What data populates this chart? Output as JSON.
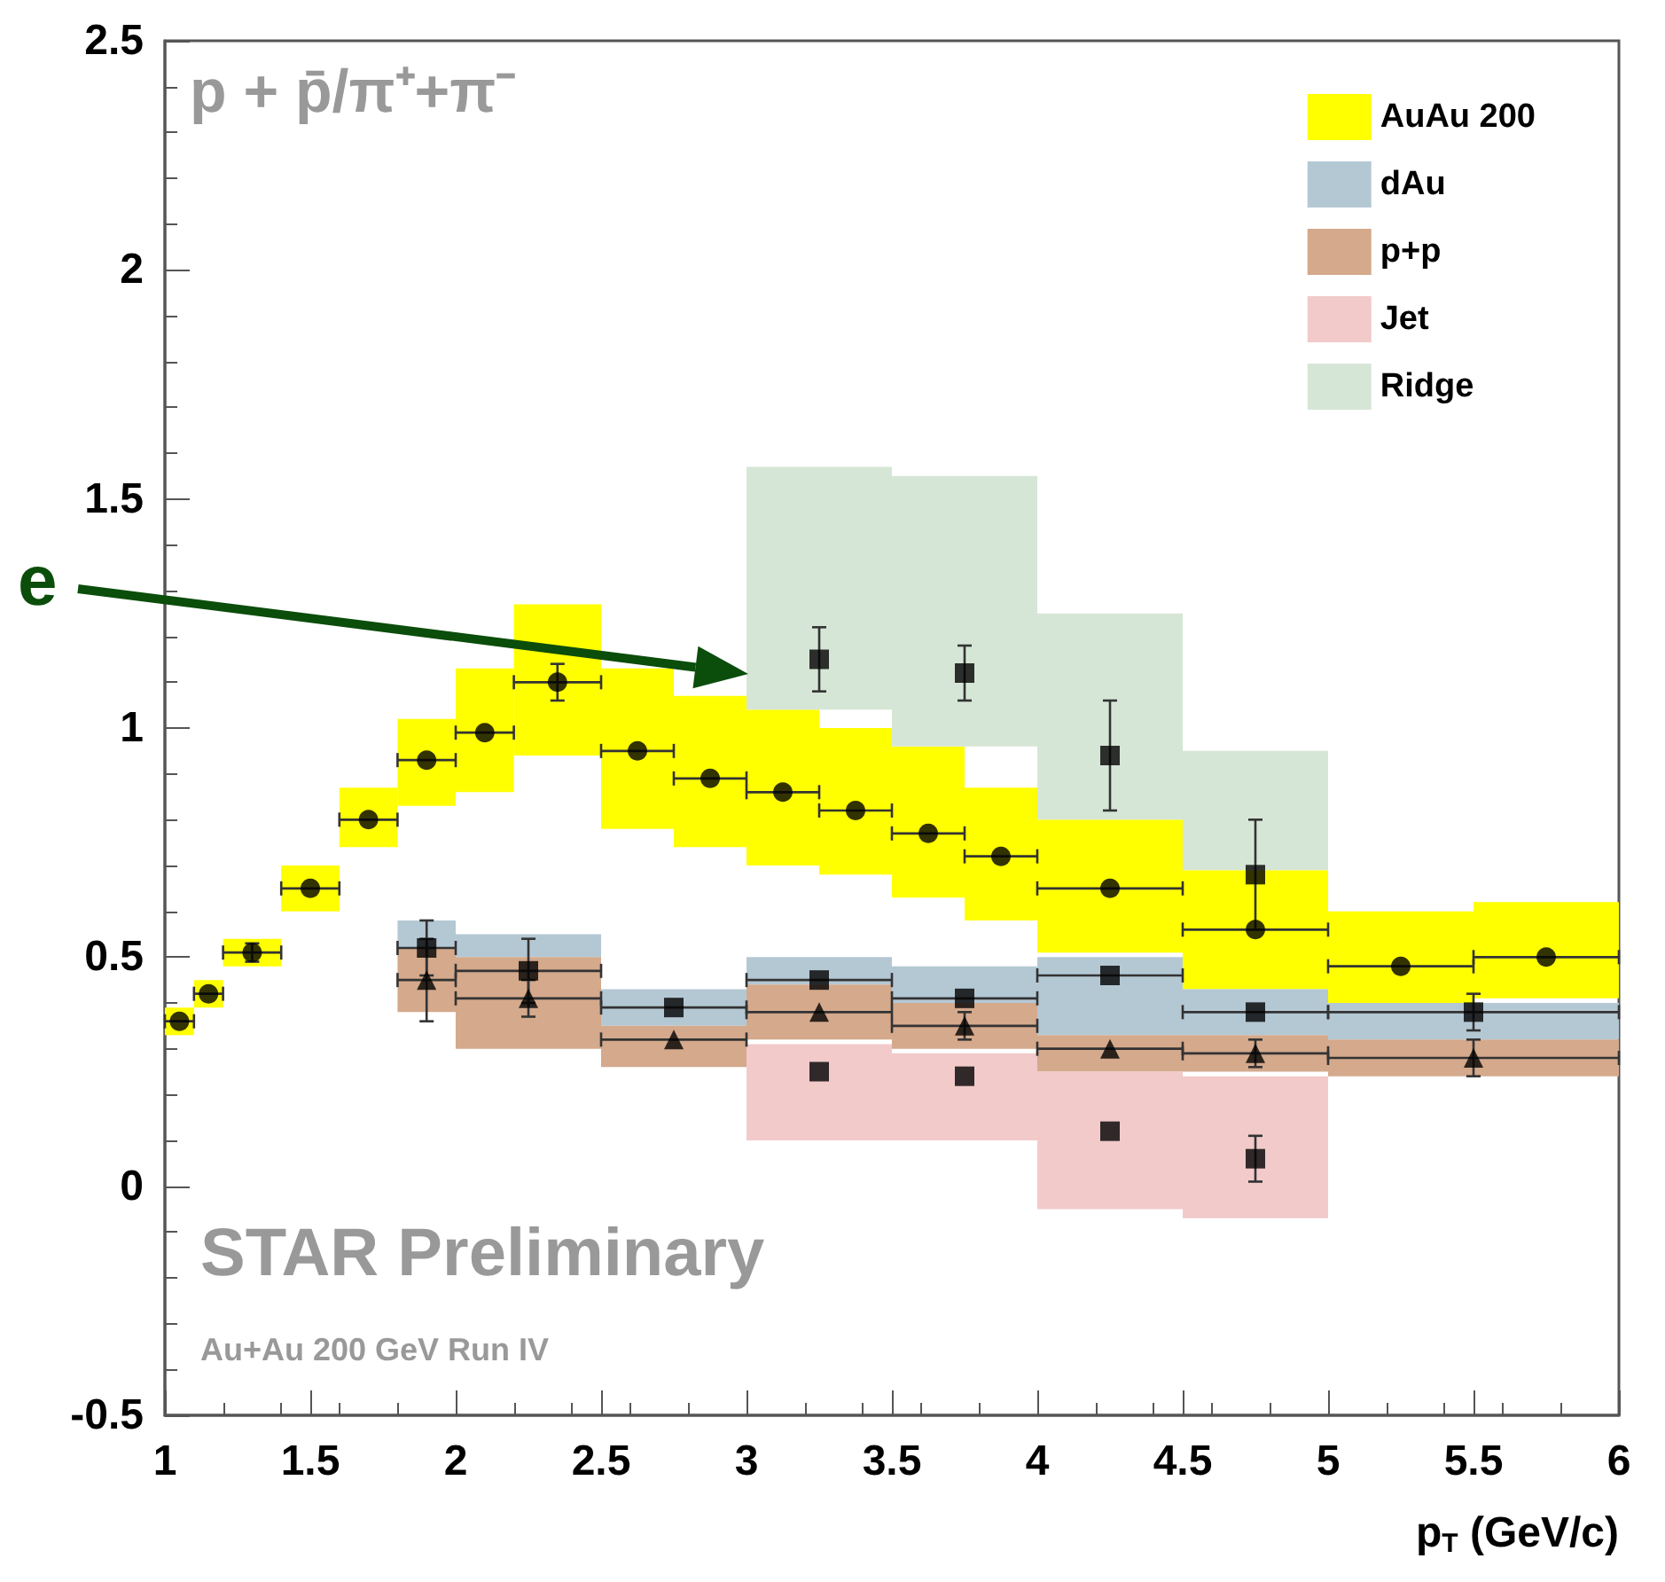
{
  "chart_data": {
    "type": "scatter",
    "title": "p + p̄/π⁺+π⁻",
    "xlabel": "p$_{T}$ (GeV/c)",
    "xlim": [
      1,
      6
    ],
    "xticks": [
      1,
      1.5,
      2,
      2.5,
      3,
      3.5,
      4,
      4.5,
      5,
      5.5,
      6
    ],
    "ylim": [
      -0.5,
      2.5
    ],
    "yticks": [
      -0.5,
      0,
      0.5,
      1,
      1.5,
      2,
      2.5
    ],
    "grid": false,
    "legend": "top right",
    "series": [
      {
        "name": "AuAu 200",
        "type": "bar",
        "color": "#ffff00",
        "x": [
          1.05,
          1.15,
          1.3,
          1.5,
          1.7,
          1.9,
          2.1,
          2.35,
          2.625,
          2.875,
          3.125,
          3.375,
          3.625,
          3.875,
          4.25,
          4.75,
          5.25,
          5.75
        ],
        "base": [
          0.33,
          0.39,
          0.48,
          0.6,
          0.74,
          0.83,
          0.86,
          0.94,
          0.78,
          0.74,
          0.7,
          0.68,
          0.63,
          0.58,
          0.51,
          0.43,
          0.4,
          0.41
        ],
        "values": [
          0.06,
          0.06,
          0.06,
          0.1,
          0.13,
          0.19,
          0.27,
          0.33,
          0.35,
          0.33,
          0.34,
          0.32,
          0.33,
          0.29,
          0.29,
          0.26,
          0.2,
          0.21
        ]
      },
      {
        "color": "#000000",
        "marker": "circle",
        "x": [
          1.05,
          1.15,
          1.3,
          1.5,
          1.7,
          1.9,
          2.1,
          2.35,
          2.625,
          2.875,
          3.125,
          3.375,
          3.625,
          3.875,
          4.25,
          4.75,
          5.25,
          5.75
        ],
        "values": [
          0.36,
          0.42,
          0.51,
          0.65,
          0.8,
          0.93,
          0.99,
          1.1,
          0.95,
          0.89,
          0.86,
          0.82,
          0.77,
          0.72,
          0.65,
          0.56,
          0.48,
          0.5
        ],
        "xerrors": [
          0.05,
          0.05,
          0.1,
          0.1,
          0.1,
          0.1,
          0.1,
          0.15,
          0.125,
          0.125,
          0.125,
          0.125,
          0.125,
          0.125,
          0.25,
          0.25,
          0.25,
          0.25
        ],
        "errors": [
          null,
          null,
          0.02,
          null,
          null,
          null,
          null,
          0.04,
          null,
          null,
          null,
          null,
          null,
          null,
          null,
          null,
          null,
          null
        ]
      },
      {
        "name": "dAu",
        "type": "bar",
        "color": "#b4c8d4",
        "x": [
          1.9,
          2.25,
          2.75,
          3.25,
          3.75,
          4.25,
          4.75,
          5.5
        ],
        "base": [
          0.52,
          0.5,
          0.35,
          0.44,
          0.4,
          0.33,
          0.33,
          0.32
        ],
        "values": [
          0.06,
          0.05,
          0.08,
          0.06,
          0.08,
          0.17,
          0.1,
          0.08
        ]
      },
      {
        "color": "#000000",
        "marker": "square",
        "x": [
          1.9,
          2.25,
          2.75,
          3.25,
          3.75,
          4.25,
          4.75,
          5.5
        ],
        "values": [
          0.52,
          0.47,
          0.39,
          0.45,
          0.41,
          0.46,
          0.38,
          0.38
        ],
        "xerrors": [
          0.1,
          0.25,
          0.25,
          0.25,
          0.25,
          0.25,
          0.25,
          0.5
        ],
        "errors": [
          0.06,
          0.07,
          null,
          null,
          null,
          null,
          null,
          0.04
        ]
      },
      {
        "name": "p+p",
        "type": "bar",
        "color": "#d4a98c",
        "x": [
          1.9,
          2.25,
          2.75,
          3.25,
          3.75,
          4.25,
          4.75,
          5.5
        ],
        "base": [
          0.38,
          0.3,
          0.26,
          0.32,
          0.3,
          0.25,
          0.25,
          0.24
        ],
        "values": [
          0.14,
          0.2,
          0.09,
          0.12,
          0.1,
          0.08,
          0.08,
          0.08
        ]
      },
      {
        "color": "#000000",
        "marker": "triangle",
        "x": [
          1.9,
          2.25,
          2.75,
          3.25,
          3.75,
          4.25,
          4.75,
          5.5
        ],
        "values": [
          0.45,
          0.41,
          0.32,
          0.38,
          0.35,
          0.3,
          0.29,
          0.28
        ],
        "xerrors": [
          0.1,
          0.25,
          0.25,
          0.25,
          0.25,
          0.25,
          0.25,
          0.5
        ],
        "errors": [
          0.09,
          0.04,
          null,
          null,
          0.03,
          null,
          0.03,
          0.04
        ]
      },
      {
        "name": "Jet",
        "type": "bar",
        "color": "#f2caca",
        "x": [
          3.25,
          3.75,
          4.25,
          4.75
        ],
        "base": [
          0.1,
          0.1,
          -0.05,
          -0.07
        ],
        "values": [
          0.21,
          0.19,
          0.3,
          0.31
        ]
      },
      {
        "color": "#000000",
        "marker": "square",
        "x": [
          3.25,
          3.75,
          4.25,
          4.75
        ],
        "values": [
          0.25,
          0.24,
          0.12,
          0.06
        ],
        "errors": [
          null,
          null,
          null,
          0.05
        ]
      },
      {
        "name": "Ridge",
        "type": "bar",
        "color": "#d6e6d6",
        "x": [
          3.25,
          3.75,
          4.25,
          4.75
        ],
        "base": [
          1.04,
          0.96,
          0.8,
          0.69
        ],
        "values": [
          0.53,
          0.59,
          0.45,
          0.26
        ]
      },
      {
        "color": "#000000",
        "marker": "square",
        "x": [
          3.25,
          3.75,
          4.25,
          4.75
        ],
        "values": [
          1.15,
          1.12,
          0.94,
          0.68
        ],
        "errors": [
          0.07,
          0.06,
          0.12,
          0.12
        ]
      }
    ],
    "annotations": [
      "STAR Preliminary",
      "Au+Au 200 GeV Run IV",
      "e"
    ]
  }
}
